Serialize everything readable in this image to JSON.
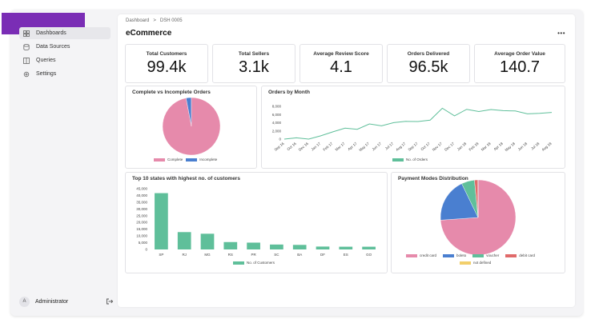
{
  "sidebar": {
    "items": [
      {
        "label": "Dashboards",
        "icon": "dashboard-icon",
        "active": true
      },
      {
        "label": "Data Sources",
        "icon": "database-icon",
        "active": false
      },
      {
        "label": "Queries",
        "icon": "query-icon",
        "active": false
      },
      {
        "label": "Settings",
        "icon": "gear-icon",
        "active": false
      }
    ],
    "user": {
      "initial": "A",
      "name": "Administrator"
    },
    "brand_color": "#7a2db5"
  },
  "breadcrumb": {
    "root": "Dashboard",
    "separator": ">",
    "current": "DSH 0005"
  },
  "page": {
    "title": "eCommerce",
    "menu": "•••"
  },
  "kpis": [
    {
      "label": "Total Customers",
      "value": "99.4k"
    },
    {
      "label": "Total Sellers",
      "value": "3.1k"
    },
    {
      "label": "Average Review Score",
      "value": "4.1"
    },
    {
      "label": "Orders Delivered",
      "value": "96.5k"
    },
    {
      "label": "Average Order Value",
      "value": "140.7"
    }
  ],
  "panels": {
    "complete": "Complete vs Incomplete Orders",
    "orders_month": "Orders by Month",
    "states": "Top 10 states with highest no. of customers",
    "payment": "Payment Modes Distribution"
  },
  "chart_data": [
    {
      "type": "pie",
      "title": "Complete vs Incomplete Orders",
      "labels": [
        "Complete",
        "Incomplete"
      ],
      "values": [
        97,
        3
      ],
      "colors": [
        "#e68aab",
        "#4a7fd0"
      ]
    },
    {
      "type": "line",
      "title": "Orders by Month",
      "x": [
        "Sep 16",
        "Oct 16",
        "Dec 16",
        "Jan 17",
        "Feb 17",
        "Mar 17",
        "Apr 17",
        "May 17",
        "Jun 17",
        "Jul 17",
        "Aug 17",
        "Sep 17",
        "Oct 17",
        "Nov 17",
        "Dec 17",
        "Jan 18",
        "Feb 18",
        "Mar 18",
        "Apr 18",
        "May 18",
        "Jun 18",
        "Jul 18",
        "Aug 18"
      ],
      "series": [
        {
          "name": "No. of Orders",
          "values": [
            4,
            324,
            1,
            800,
            1780,
            2680,
            2400,
            3700,
            3250,
            4030,
            4330,
            4290,
            4630,
            7540,
            5670,
            7270,
            6730,
            7210,
            6940,
            6870,
            6170,
            6290,
            6510
          ]
        }
      ],
      "yticks": [
        "0",
        "2,000",
        "4,000",
        "6,000",
        "8,000"
      ],
      "ylim": [
        0,
        8000
      ],
      "color": "#5fbf9a"
    },
    {
      "type": "bar",
      "title": "Top 10 states with highest no. of customers",
      "categories": [
        "SP",
        "RJ",
        "MG",
        "RS",
        "PR",
        "SC",
        "BA",
        "DF",
        "ES",
        "GO"
      ],
      "series": [
        {
          "name": "No. of Customers",
          "values": [
            41700,
            12850,
            11640,
            5470,
            5050,
            3640,
            3380,
            2140,
            2030,
            2020
          ]
        }
      ],
      "yticks": [
        "0",
        "5,000",
        "10,000",
        "15,000",
        "20,000",
        "25,000",
        "30,000",
        "35,000",
        "40,000",
        "45,000"
      ],
      "ylim": [
        0,
        45000
      ],
      "color": "#5fbf9a"
    },
    {
      "type": "pie",
      "title": "Payment Modes Distribution",
      "labels": [
        "credit card",
        "boleto",
        "voucher",
        "debit card",
        "not defined"
      ],
      "values": [
        73.9,
        19.0,
        5.6,
        1.5,
        0.05
      ],
      "colors": [
        "#e68aab",
        "#4a7fd0",
        "#5fbf9a",
        "#e06a6a",
        "#f2cf6b"
      ]
    }
  ]
}
